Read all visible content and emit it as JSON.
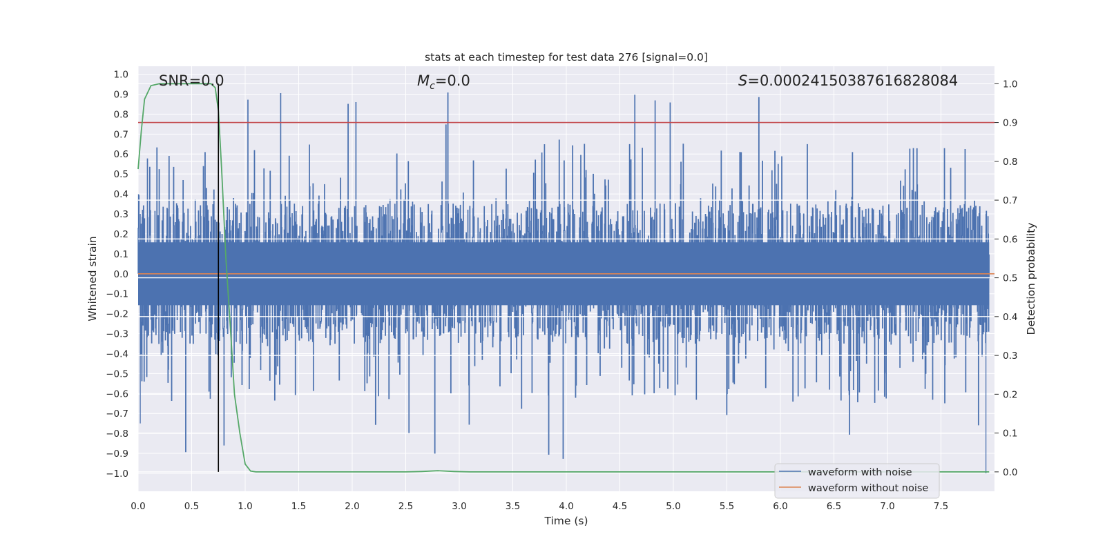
{
  "chart_data": {
    "type": "line",
    "title": "stats at each timestep for test data 276 [signal=0.0]",
    "xlabel": "Time (s)",
    "ylabel": "Whitened strain",
    "ylabel_right": "Detection probability",
    "xlim": [
      0.0,
      8.0
    ],
    "ylim": [
      -1.09,
      1.04
    ],
    "ylim_right": [
      -0.05,
      1.045
    ],
    "xticks": [
      "0.0",
      "0.5",
      "1.0",
      "1.5",
      "2.0",
      "2.5",
      "3.0",
      "3.5",
      "4.0",
      "4.5",
      "5.0",
      "5.5",
      "6.0",
      "6.5",
      "7.0",
      "7.5"
    ],
    "yticks": [
      "1.0",
      "0.9",
      "0.8",
      "0.7",
      "0.6",
      "0.5",
      "0.4",
      "0.3",
      "0.2",
      "0.1",
      "0.0",
      "-0.1",
      "-0.2",
      "-0.3",
      "-0.4",
      "-0.5",
      "-0.6",
      "-0.7",
      "-0.8",
      "-0.9",
      "-1.0"
    ],
    "yticks_right": [
      "1.0",
      "0.9",
      "0.8",
      "0.7",
      "0.6",
      "0.5",
      "0.4",
      "0.3",
      "0.2",
      "0.1",
      "0.0"
    ],
    "annotations": {
      "snr": "SNR=0.0",
      "mc_symbol": "M",
      "mc_sub": "c",
      "mc_value": "=0.0",
      "s_symbol": "S",
      "s_value": "=0.00024150387616828084"
    },
    "threshold_right": 0.9,
    "marker_time": 0.75,
    "noise_envelope": {
      "core_amplitude": 0.35,
      "typical_peak": 0.55,
      "max_peak": 0.93,
      "min_peak": -1.0,
      "duration": 7.95
    },
    "legend": {
      "placement": "lower-right",
      "entries": [
        "waveform with noise",
        "waveform without noise"
      ]
    },
    "series": [
      {
        "name": "waveform with noise",
        "color": "#4c72b0"
      },
      {
        "name": "waveform without noise",
        "color": "#dd8452",
        "y": 0.0
      },
      {
        "name": "detection probability",
        "color": "#55a868",
        "axis": "right",
        "x": [
          0.0,
          0.03,
          0.06,
          0.12,
          0.2,
          0.3,
          0.45,
          0.6,
          0.68,
          0.72,
          0.75,
          0.78,
          0.82,
          0.86,
          0.9,
          0.95,
          1.0,
          1.05,
          1.1,
          1.2,
          1.5,
          2.0,
          2.5,
          2.65,
          2.8,
          2.95,
          3.1,
          3.5,
          4.0,
          5.0,
          6.0,
          7.0,
          7.5,
          7.95
        ],
        "y": [
          0.78,
          0.88,
          0.96,
          0.995,
          1.0,
          1.0,
          1.0,
          1.0,
          1.0,
          0.99,
          0.93,
          0.78,
          0.55,
          0.38,
          0.2,
          0.1,
          0.02,
          0.002,
          0.0,
          0.0,
          0.0,
          0.0,
          0.0,
          0.001,
          0.003,
          0.001,
          0.0,
          0.0,
          0.0,
          0.0,
          0.0,
          0.0,
          0.0,
          0.0
        ]
      },
      {
        "name": "threshold",
        "color": "#c44e52",
        "axis": "right"
      },
      {
        "name": "marker",
        "color": "#000000"
      }
    ]
  }
}
